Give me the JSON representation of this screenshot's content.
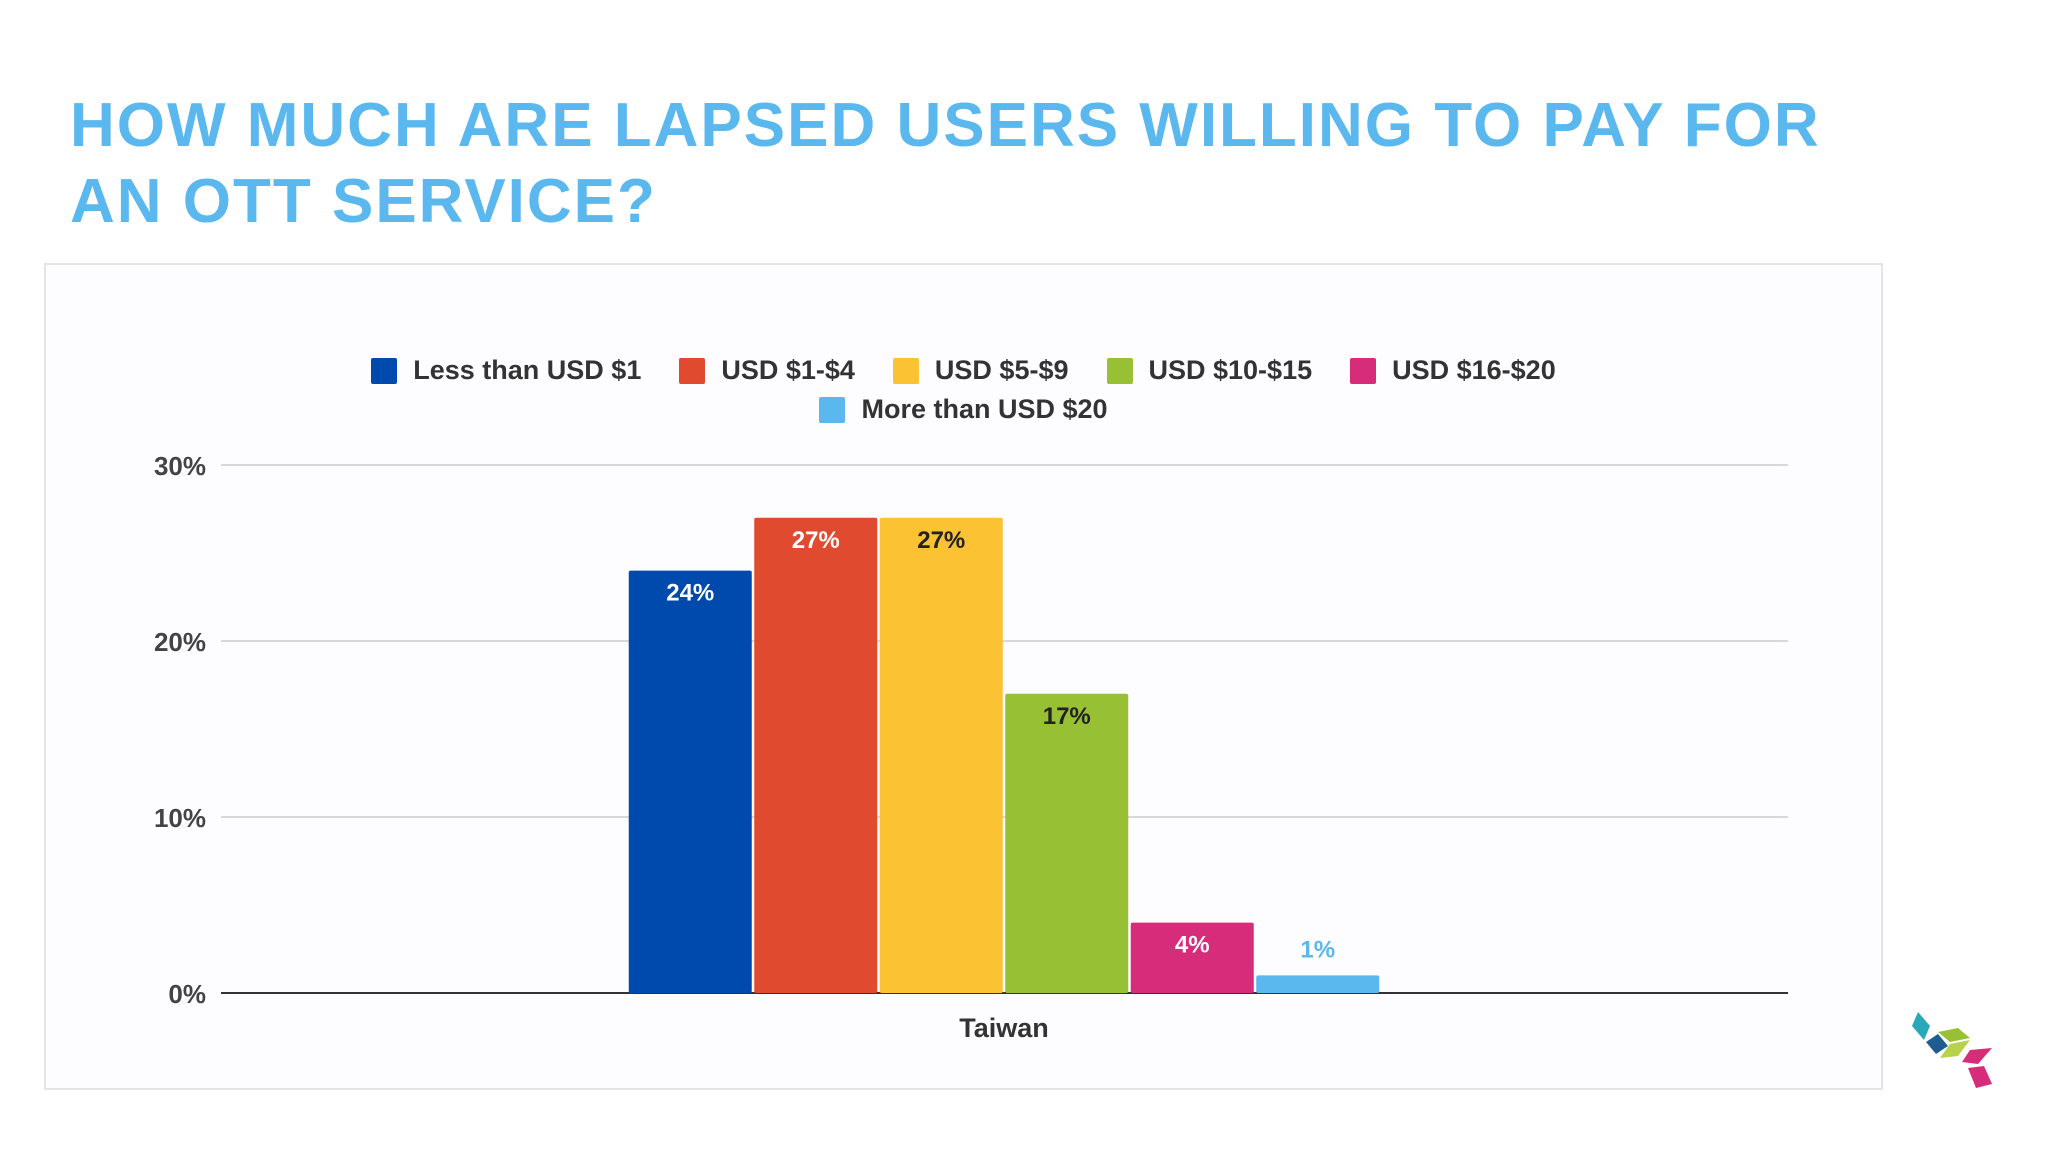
{
  "title": "HOW MUCH ARE LAPSED USERS WILLING TO PAY FOR AN OTT SERVICE?",
  "chart_data": {
    "type": "bar",
    "categories": [
      "Taiwan"
    ],
    "series": [
      {
        "name": "Less than USD $1",
        "values": [
          24
        ],
        "label": "24%",
        "color": "#004aad",
        "label_color": "#ffffff"
      },
      {
        "name": "USD $1-$4",
        "values": [
          27
        ],
        "label": "27%",
        "color": "#e04a2f",
        "label_color": "#ffffff"
      },
      {
        "name": "USD $5-$9",
        "values": [
          27
        ],
        "label": "27%",
        "color": "#fbc233",
        "label_color": "#222222"
      },
      {
        "name": "USD $10-$15",
        "values": [
          17
        ],
        "label": "17%",
        "color": "#98c034",
        "label_color": "#222222"
      },
      {
        "name": "USD $16-$20",
        "values": [
          4
        ],
        "label": "4%",
        "color": "#d62c7a",
        "label_color": "#ffffff"
      },
      {
        "name": "More than USD $20",
        "values": [
          1
        ],
        "label": "1%",
        "color": "#5ab8ee",
        "label_color": "#5ab8ee"
      }
    ],
    "yticks": [
      "0%",
      "10%",
      "20%",
      "30%"
    ],
    "ytick_values": [
      0,
      10,
      20,
      30
    ],
    "ylim": [
      0,
      30
    ],
    "legend_position": "top",
    "grid": true
  },
  "logo": {
    "name": "company-logo",
    "colors": [
      "#2aa7b8",
      "#1f5c8f",
      "#98c034",
      "#d62c7a"
    ]
  }
}
